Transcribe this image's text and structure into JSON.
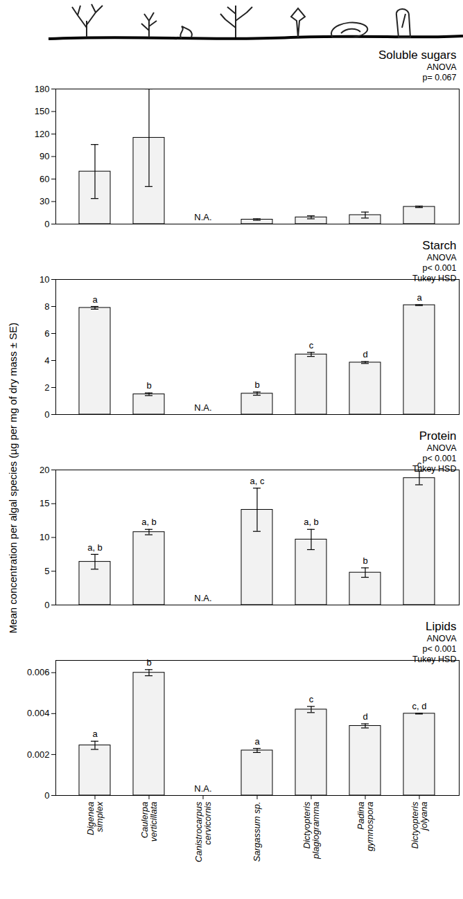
{
  "ylabel": "Mean concentration per algal species (µg per mg of dry mass ± SE)",
  "chart_data": [
    {
      "type": "bar",
      "title": "Soluble sugars",
      "stats": [
        "ANOVA",
        "p= 0.067"
      ],
      "categories": [
        "Digenea simplex",
        "Caulerpa verticillata",
        "Canistrocarpus cervicornis",
        "Sargassum sp.",
        "Dictyopteris plagiogramma",
        "Padina gymnospora",
        "Dictyopteris jolyana"
      ],
      "values": [
        70,
        115,
        null,
        6,
        9,
        12,
        23
      ],
      "errors": [
        36,
        65,
        null,
        1,
        2,
        4,
        1
      ],
      "bar_labels": [
        null,
        null,
        "N.A.",
        null,
        null,
        null,
        null
      ],
      "color": "#f2f2f2",
      "ylim": [
        0,
        180
      ],
      "yticks": [
        0,
        30,
        60,
        90,
        120,
        150,
        180
      ],
      "grid": false,
      "tick_labels": "y"
    },
    {
      "type": "bar",
      "title": "Starch",
      "stats": [
        "ANOVA",
        "p< 0.001",
        "Tukey HSD"
      ],
      "categories": [
        "Digenea simplex",
        "Caulerpa verticillata",
        "Canistrocarpus cervicornis",
        "Sargassum sp.",
        "Dictyopteris plagiogramma",
        "Padina gymnospora",
        "Dictyopteris jolyana"
      ],
      "values": [
        7.9,
        1.5,
        null,
        1.55,
        4.45,
        3.85,
        8.1
      ],
      "errors": [
        0.1,
        0.1,
        null,
        0.12,
        0.15,
        0.07,
        0.03
      ],
      "bar_labels": [
        "a",
        "b",
        "N.A.",
        "b",
        "c",
        "d",
        "a"
      ],
      "color": "#f2f2f2",
      "ylim": [
        0,
        10
      ],
      "yticks": [
        0,
        2,
        4,
        6,
        8,
        10
      ],
      "grid": false,
      "tick_labels": "y"
    },
    {
      "type": "bar",
      "title": "Protein",
      "stats": [
        "ANOVA",
        "p< 0.001",
        "Tukey HSD"
      ],
      "categories": [
        "Digenea simplex",
        "Caulerpa verticillata",
        "Canistrocarpus cervicornis",
        "Sargassum sp.",
        "Dictyopteris plagiogramma",
        "Padina gymnospora",
        "Dictyopteris jolyana"
      ],
      "values": [
        6.4,
        10.8,
        null,
        14.1,
        9.7,
        4.8,
        18.8
      ],
      "errors": [
        1.1,
        0.4,
        null,
        3.2,
        1.5,
        0.7,
        1
      ],
      "bar_labels": [
        "a, b",
        "a, b",
        "N.A.",
        "a, c",
        "a, b",
        "b",
        "c"
      ],
      "color": "#f2f2f2",
      "ylim": [
        0,
        20
      ],
      "yticks": [
        0,
        5,
        10,
        15,
        20
      ],
      "grid": false,
      "tick_labels": "y"
    },
    {
      "type": "bar",
      "title": "Lipids",
      "stats": [
        "ANOVA",
        "p< 0.001",
        "Tukey HSD"
      ],
      "categories": [
        "Digenea simplex",
        "Caulerpa verticillata",
        "Canistrocarpus cervicornis",
        "Sargassum sp.",
        "Dictyopteris plagiogramma",
        "Padina gymnospora",
        "Dictyopteris jolyana"
      ],
      "values": [
        0.00245,
        0.006,
        null,
        0.0022,
        0.0042,
        0.0034,
        0.004
      ],
      "errors": [
        0.0002,
        0.00015,
        null,
        0.0001,
        0.00015,
        0.0001,
        2e-05
      ],
      "bar_labels": [
        "a",
        "b",
        "N.A.",
        "a",
        "c",
        "d",
        "c, d"
      ],
      "color": "#f2f2f2",
      "ylim": [
        0,
        0.0066
      ],
      "yticks": [
        0,
        0.002,
        0.004,
        0.006
      ],
      "grid": false,
      "tick_labels": true
    }
  ]
}
